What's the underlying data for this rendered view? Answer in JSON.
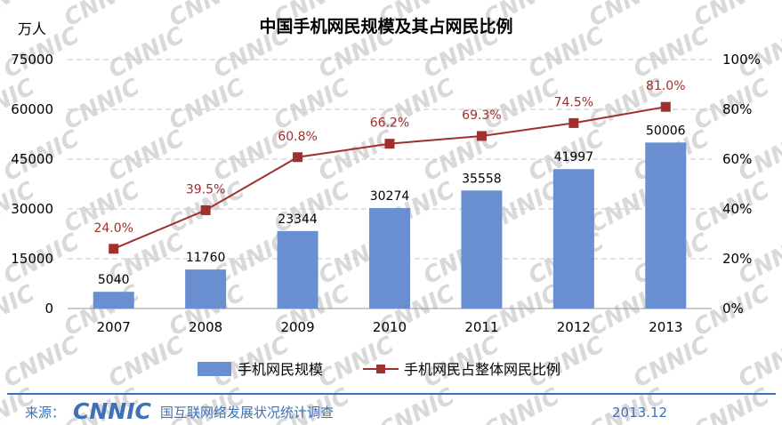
{
  "title": "中国手机网民规模及其占网民比例",
  "y_unit": "万人",
  "watermark": "CNNIC",
  "chart_data": {
    "type": "bar",
    "categories": [
      "2007",
      "2008",
      "2009",
      "2010",
      "2011",
      "2012",
      "2013"
    ],
    "series": [
      {
        "name": "手机网民规模",
        "type": "bar",
        "axis": "left",
        "values": [
          5040,
          11760,
          23344,
          30274,
          35558,
          41997,
          50006
        ],
        "labels": [
          "5040",
          "11760",
          "23344",
          "30274",
          "35558",
          "41997",
          "50006"
        ],
        "color": "#6a8fd1"
      },
      {
        "name": "手机网民占整体网民比例",
        "type": "line",
        "axis": "right",
        "values": [
          24.0,
          39.5,
          60.8,
          66.2,
          69.3,
          74.5,
          81.0
        ],
        "labels": [
          "24.0%",
          "39.5%",
          "60.8%",
          "66.2%",
          "69.3%",
          "74.5%",
          "81.0%"
        ],
        "color": "#a0302e"
      }
    ],
    "ylim": [
      0,
      75000
    ],
    "y_ticks": [
      "0",
      "15000",
      "30000",
      "45000",
      "60000",
      "75000"
    ],
    "y2lim": [
      0,
      100
    ],
    "y2_ticks": [
      "0%",
      "20%",
      "40%",
      "60%",
      "80%",
      "100%"
    ],
    "grid": true,
    "legend_position": "bottom"
  },
  "footer": {
    "source_label": "来源：",
    "logo_text": "CNNIC",
    "org": "国互联网络发展状况统计调查",
    "date": "2013.12",
    "rule_color": "#3d72b8"
  }
}
